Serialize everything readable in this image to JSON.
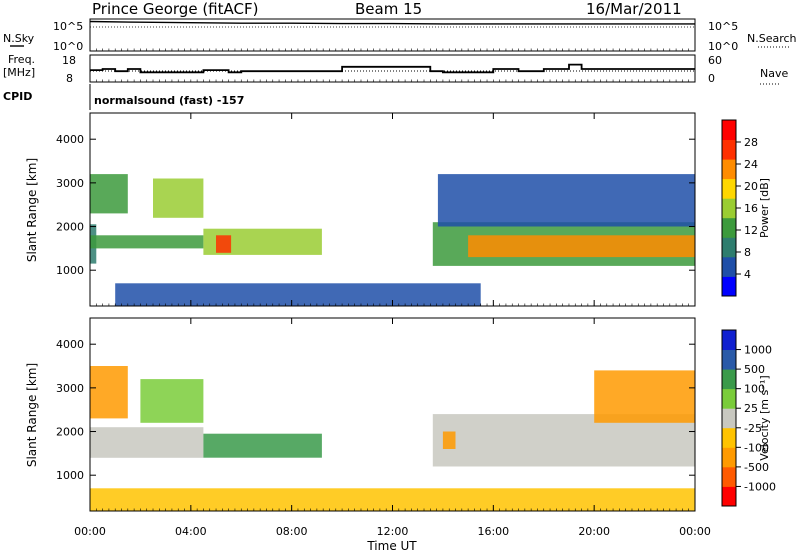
{
  "header": {
    "station": "Prince George (fitACF)",
    "beam": "Beam 15",
    "date": "16/Mar/2011"
  },
  "top_panels": {
    "nsky_label": "N.Sky",
    "nsearch_label": "N.Search",
    "noise_ticks": [
      "10^5",
      "10^0"
    ],
    "freq_label_line1": "Freq.",
    "freq_label_line2": "[MHz]",
    "freq_ticks": [
      "18",
      "8"
    ],
    "nave_ticks": [
      "60",
      "0"
    ],
    "nave_label": "Nave",
    "cpid_label": "CPID",
    "cpid_text": "normalsound (fast) -157"
  },
  "x_axis": {
    "label": "Time UT",
    "ticks": [
      "00:00",
      "04:00",
      "08:00",
      "12:00",
      "16:00",
      "20:00",
      "00:00"
    ]
  },
  "y_axis": {
    "label": "Slant Range [km]",
    "ticks": [
      "1000",
      "2000",
      "3000",
      "4000"
    ]
  },
  "power_colorbar": {
    "label": "Power [dB]",
    "ticks": [
      "4",
      "8",
      "12",
      "16",
      "20",
      "24",
      "28"
    ]
  },
  "velocity_colorbar": {
    "label": "Velocity [m s⁻¹]",
    "ticks": [
      "-1000",
      "-500",
      "-100",
      "-25",
      "25",
      "100",
      "500",
      "1000"
    ]
  },
  "colors": {
    "power_scale": [
      "#0000ff",
      "#1f4fa8",
      "#2e7d6e",
      "#3c9a3c",
      "#9acd32",
      "#ffd700",
      "#ff8c00",
      "#ff3000",
      "#ff0000"
    ],
    "velocity_scale": [
      "#ff0000",
      "#ff5a00",
      "#ff9a00",
      "#ffc300",
      "#c8c8c0",
      "#7acc3a",
      "#3a9a4a",
      "#2a5aa8",
      "#1020d0"
    ],
    "ground_scatter": "#c8c8c0"
  },
  "chart_data": [
    {
      "type": "line",
      "title": "N.Sky / N.Search",
      "x": [
        "00:00",
        "02:00",
        "04:00",
        "06:00",
        "08:00",
        "10:00",
        "12:00",
        "14:00",
        "16:00",
        "18:00",
        "20:00",
        "22:00",
        "24:00"
      ],
      "series": [
        {
          "name": "N.Sky",
          "values": [
            80000,
            60000,
            50000,
            40000,
            40000,
            35000,
            35000,
            30000,
            30000,
            30000,
            30000,
            30000,
            30000
          ]
        }
      ],
      "ylim": [
        1,
        100000
      ],
      "yscale": "log"
    },
    {
      "type": "line",
      "title": "Freq. / Nave",
      "x": [
        "00:00",
        "00:30",
        "01:00",
        "01:30",
        "02:00",
        "04:00",
        "04:30",
        "05:30",
        "06:00",
        "10:00",
        "11:00",
        "13:30",
        "14:00",
        "16:00",
        "17:00",
        "18:00",
        "19:00",
        "19:30",
        "20:00",
        "21:00",
        "24:00"
      ],
      "series": [
        {
          "name": "Freq.",
          "values": [
            12.5,
            13,
            12,
            13,
            11.5,
            11.5,
            12.5,
            11.5,
            12,
            14,
            14,
            12,
            11.5,
            13,
            12,
            13,
            15,
            13,
            13,
            13,
            13
          ]
        }
      ],
      "ylim": [
        8,
        18
      ]
    },
    {
      "type": "heatmap",
      "title": "Power [dB]",
      "x_range": [
        "00:00",
        "24:00"
      ],
      "ylim": [
        180,
        4600
      ],
      "ylabel": "Slant Range [km]",
      "xlabel": "Time UT",
      "zlim": [
        0,
        30
      ],
      "cells": [
        {
          "t0": 0.0,
          "t1": 0.25,
          "r0": 1150,
          "r1": 2050,
          "v": 8
        },
        {
          "t0": 0.0,
          "t1": 4.5,
          "r0": 1500,
          "r1": 1800,
          "v": 10
        },
        {
          "t0": 0.0,
          "t1": 1.5,
          "r0": 2300,
          "r1": 3200,
          "v": 11
        },
        {
          "t0": 2.5,
          "t1": 4.5,
          "r0": 2200,
          "r1": 3100,
          "v": 14
        },
        {
          "t0": 4.5,
          "t1": 9.2,
          "r0": 1350,
          "r1": 1950,
          "v": 14
        },
        {
          "t0": 5.0,
          "t1": 5.6,
          "r0": 1400,
          "r1": 1800,
          "v": 26
        },
        {
          "t0": 1.0,
          "t1": 15.5,
          "r0": 180,
          "r1": 700,
          "v": 4
        },
        {
          "t0": 13.6,
          "t1": 24.0,
          "r0": 1100,
          "r1": 2100,
          "v": 12
        },
        {
          "t0": 15.0,
          "t1": 24.0,
          "r0": 1300,
          "r1": 1800,
          "v": 20
        },
        {
          "t0": 13.8,
          "t1": 24.0,
          "r0": 2000,
          "r1": 3200,
          "v": 6
        }
      ]
    },
    {
      "type": "heatmap",
      "title": "Velocity [m s⁻¹]",
      "x_range": [
        "00:00",
        "24:00"
      ],
      "ylim": [
        180,
        4600
      ],
      "ylabel": "Slant Range [km]",
      "xlabel": "Time UT",
      "zlim": [
        -1000,
        1000
      ],
      "cells": [
        {
          "t0": 0.0,
          "t1": 4.5,
          "r0": 1400,
          "r1": 2100,
          "v": 0
        },
        {
          "t0": 0.0,
          "t1": 1.5,
          "r0": 2300,
          "r1": 3500,
          "v": -200
        },
        {
          "t0": 2.0,
          "t1": 4.5,
          "r0": 2200,
          "r1": 3200,
          "v": 60
        },
        {
          "t0": 4.5,
          "t1": 9.2,
          "r0": 1400,
          "r1": 1950,
          "v": 150
        },
        {
          "t0": 13.6,
          "t1": 24.0,
          "r0": 1200,
          "r1": 2400,
          "v": 0
        },
        {
          "t0": 14.0,
          "t1": 14.5,
          "r0": 1600,
          "r1": 2000,
          "v": -300
        },
        {
          "t0": 20.0,
          "t1": 24.0,
          "r0": 2200,
          "r1": 3400,
          "v": -100
        },
        {
          "t0": 0.0,
          "t1": 24.0,
          "r0": 180,
          "r1": 700,
          "v": -50
        }
      ]
    }
  ]
}
